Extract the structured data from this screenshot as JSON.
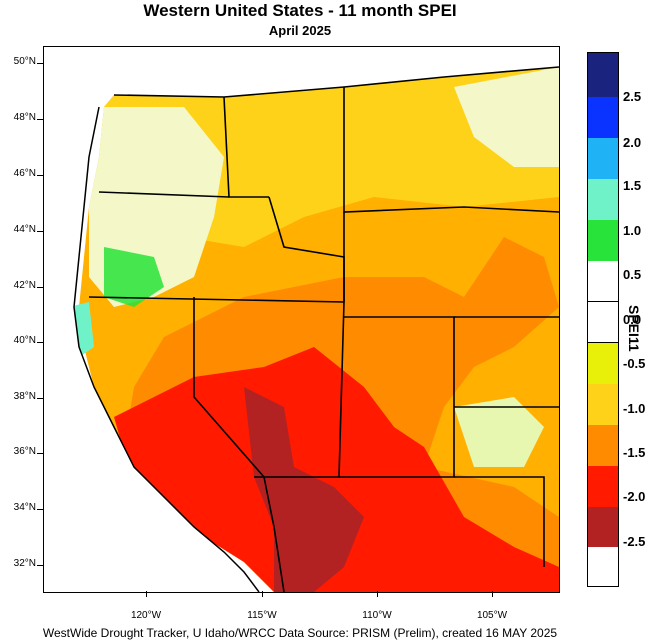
{
  "title": "Western United States - 11 month SPEI",
  "subtitle": "April 2025",
  "map": {
    "lat_ticks": [
      "50°N",
      "48°N",
      "46°N",
      "44°N",
      "42°N",
      "40°N",
      "38°N",
      "36°N",
      "34°N",
      "32°N"
    ],
    "lon_ticks": [
      "120°W",
      "115°W",
      "110°W",
      "105°W"
    ]
  },
  "colorbar": {
    "title": "SPEI11",
    "labels": [
      "2.5",
      "2.0",
      "1.5",
      "1.0",
      "0.5",
      "0.0",
      "-0.5",
      "-1.0",
      "-1.5",
      "-2.0",
      "-2.5"
    ],
    "colors": [
      "#1a237e",
      "#0a33ff",
      "#1fb2f5",
      "#6ff2c8",
      "#27e33a",
      "#ffffff",
      "#ffffff",
      "#e8f00a",
      "#ffd21a",
      "#ff8c00",
      "#ff1a00",
      "#b22222"
    ]
  },
  "footer": "WestWide Drought Tracker, U Idaho/WRCC Data Source: PRISM (Prelim), created 16 MAY 2025"
}
